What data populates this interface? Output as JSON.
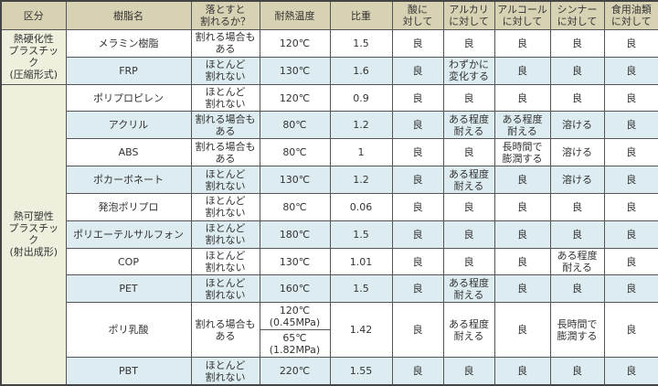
{
  "headers": [
    "区分",
    "樹脂名",
    "落とすと\n割れるか？",
    "耐熱温度",
    "比重",
    "酸に\n対して",
    "アルカリ\nに対して",
    "アルコール\nに対して",
    "シンナー\nに対して",
    "食用油類\nに対して"
  ],
  "categories": [
    {
      "label": "熱硬化性\nプラスチック\n(圧縮形式)",
      "rows": 2
    },
    {
      "label": "熱可塑性\nプラスチック\n(射出成形)",
      "rows": 10
    }
  ],
  "rows": [
    {
      "name": "メラミン樹脂",
      "drop": "割れる場合も\nある",
      "heat": [
        "120℃"
      ],
      "gravity": "1.5",
      "acid": "良",
      "alkali": "良",
      "alcohol": "良",
      "thinner": "良",
      "oil": "良"
    },
    {
      "name": "FRP",
      "drop": "ほとんど\n割れない",
      "heat": [
        "130℃"
      ],
      "gravity": "1.6",
      "acid": "良",
      "alkali": "わずかに\n変化する",
      "alcohol": "良",
      "thinner": "良",
      "oil": "良"
    },
    {
      "name": "ポリプロピレン",
      "drop": "ほとんど\n割れない",
      "heat": [
        "120℃"
      ],
      "gravity": "0.9",
      "acid": "良",
      "alkali": "良",
      "alcohol": "良",
      "thinner": "良",
      "oil": "良"
    },
    {
      "name": "アクリル",
      "drop": "割れる場合も\nある",
      "heat": [
        "80℃"
      ],
      "gravity": "1.2",
      "acid": "良",
      "alkali": "ある程度\n耐える",
      "alcohol": "ある程度\n耐える",
      "thinner": "溶ける",
      "oil": "良"
    },
    {
      "name": "ABS",
      "drop": "割れる場合も\nある",
      "heat": [
        "80℃"
      ],
      "gravity": "1",
      "acid": "良",
      "alkali": "良",
      "alcohol": "長時間で\n膨潤する",
      "thinner": "溶ける",
      "oil": "良"
    },
    {
      "name": "ポカーボネート",
      "drop": "ほとんど\n割れない",
      "heat": [
        "130℃"
      ],
      "gravity": "1.2",
      "acid": "良",
      "alkali": "ある程度\n耐える",
      "alcohol": "良",
      "thinner": "溶ける",
      "oil": "良"
    },
    {
      "name": "発泡ポリプロ",
      "drop": "ほとんど\n割れない",
      "heat": [
        "80℃"
      ],
      "gravity": "0.06",
      "acid": "良",
      "alkali": "良",
      "alcohol": "良",
      "thinner": "良",
      "oil": "良"
    },
    {
      "name": "ポリエーテルサルフォン",
      "drop": "ほとんど\n割れない",
      "heat": [
        "180℃"
      ],
      "gravity": "1.5",
      "acid": "良",
      "alkali": "良",
      "alcohol": "良",
      "thinner": "良",
      "oil": "良"
    },
    {
      "name": "COP",
      "drop": "ほとんど\n割れない",
      "heat": [
        "130℃"
      ],
      "gravity": "1.01",
      "acid": "良",
      "alkali": "良",
      "alcohol": "良",
      "thinner": "ある程度\n耐える",
      "oil": "良"
    },
    {
      "name": "PET",
      "drop": "ほとんど\n割れない",
      "heat": [
        "160℃"
      ],
      "gravity": "1.5",
      "acid": "良",
      "alkali": "ある程度\n耐える",
      "alcohol": "良",
      "thinner": "良",
      "oil": "良"
    },
    {
      "name": "ポリ乳酸",
      "drop": "割れる場合も\nある",
      "heat": [
        "120℃\n(0.45MPa)",
        "65℃\n(1.82MPa)"
      ],
      "gravity": "1.42",
      "acid": "良",
      "alkali": "ある程度\n耐える",
      "alcohol": "良",
      "thinner": "長時間で\n膨潤する",
      "oil": "良"
    },
    {
      "name": "PBT",
      "drop": "ほとんど\n割れない",
      "heat": [
        "220℃"
      ],
      "gravity": "1.55",
      "acid": "良",
      "alkali": "良",
      "alcohol": "良",
      "thinner": "良",
      "oil": "良"
    }
  ],
  "colors": {
    "header": "#d8d2b4",
    "category": "#eef0dd",
    "stripe": "#dcecf1"
  }
}
